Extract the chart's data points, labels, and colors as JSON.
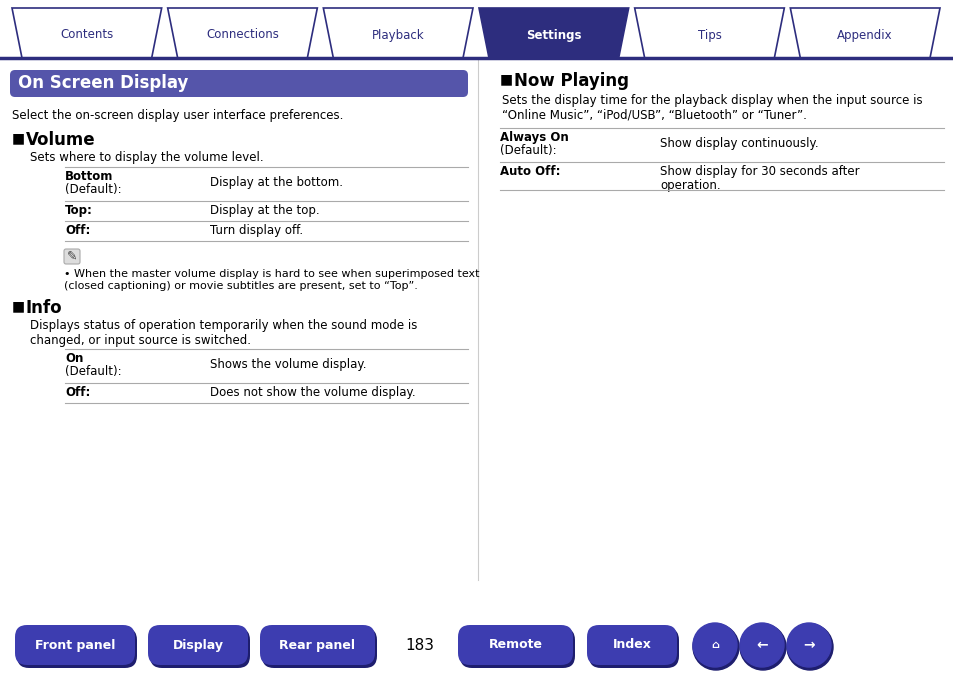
{
  "bg_color": "#ffffff",
  "nav_tabs": [
    "Contents",
    "Connections",
    "Playback",
    "Settings",
    "Tips",
    "Appendix"
  ],
  "nav_active": 3,
  "nav_color_active": "#2d2d7e",
  "nav_color_inactive": "#ffffff",
  "nav_text_color_active": "#ffffff",
  "nav_text_color_inactive": "#2d2d7e",
  "nav_border_color": "#2d2d7e",
  "header_bg": "#5555aa",
  "header_text": "On Screen Display",
  "header_text_color": "#ffffff",
  "subtitle": "Select the on-screen display user interface preferences.",
  "section1_title": "Volume",
  "section1_desc": "Sets where to display the volume level.",
  "section1_rows": [
    [
      "Bottom\n(Default):",
      "Display at the bottom."
    ],
    [
      "Top:",
      "Display at the top."
    ],
    [
      "Off:",
      "Turn display off."
    ]
  ],
  "note_text": "When the master volume display is hard to see when superimposed text\n(closed captioning) or movie subtitles are present, set to “Top”.",
  "section2_title": "Info",
  "section2_desc": "Displays status of operation temporarily when the sound mode is\nchanged, or input source is switched.",
  "section2_rows": [
    [
      "On\n(Default):",
      "Shows the volume display."
    ],
    [
      "Off:",
      "Does not show the volume display."
    ]
  ],
  "right_section_title": "Now Playing",
  "right_section_desc": "Sets the display time for the playback display when the input source is\n“Online Music”, “iPod/USB”, “Bluetooth” or “Tuner”.",
  "right_rows": [
    [
      "Always On\n(Default):",
      "Show display continuously."
    ],
    [
      "Auto Off:",
      "Show display for 30 seconds after\noperation."
    ]
  ],
  "page_number": "183",
  "bottom_buttons": [
    "Front panel",
    "Display",
    "Rear panel",
    "Remote",
    "Index"
  ],
  "btn_color_dark": "#1e1e6e",
  "btn_color_main": "#3d3db0",
  "btn_text_color": "#ffffff",
  "line_color": "#aaaaaa",
  "body_text_color": "#000000"
}
